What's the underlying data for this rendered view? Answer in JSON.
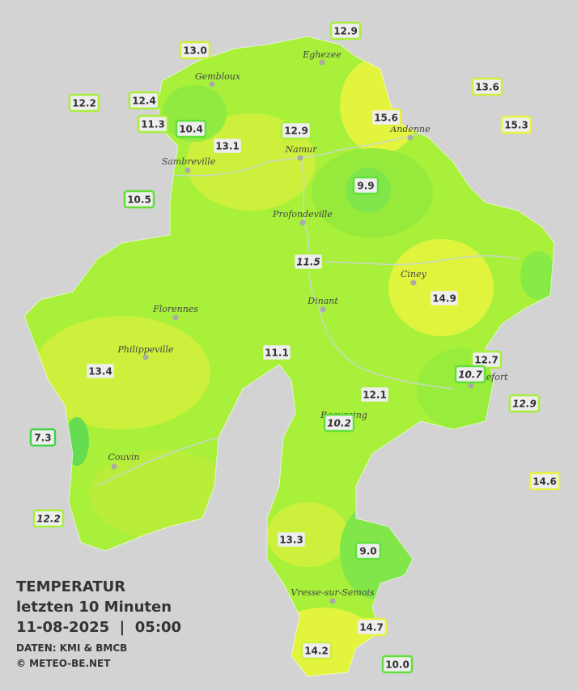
{
  "legend": {
    "title": "TEMPERATUR",
    "subtitle": "letzten 10 Minuten",
    "datetime": "11-08-2025  |  05:00",
    "source": "DATEN: KMI & BMCB",
    "copyright": "© METEO-BE.NET"
  },
  "cities": [
    "Eghezee",
    "Gembloux",
    "Andenne",
    "Namur",
    "Sambreville",
    "Profondeville",
    "Ciney",
    "Dinant",
    "Florennes",
    "Philippeville",
    "Rochefort",
    "Beauraing",
    "Couvin",
    "Vresse-sur-Semois"
  ],
  "stations": [
    "12.9",
    "13.0",
    "13.6",
    "12.2",
    "12.4",
    "15.6",
    "15.3",
    "11.3",
    "10.4",
    "12.9",
    "13.1",
    "9.9",
    "10.5",
    "11.5",
    "14.9",
    "11.1",
    "12.7",
    "13.4",
    "10.7",
    "12.1",
    "12.9",
    "10.2",
    "7.3",
    "14.6",
    "12.2",
    "13.3",
    "9.0",
    "14.7",
    "14.2",
    "10.0"
  ]
}
